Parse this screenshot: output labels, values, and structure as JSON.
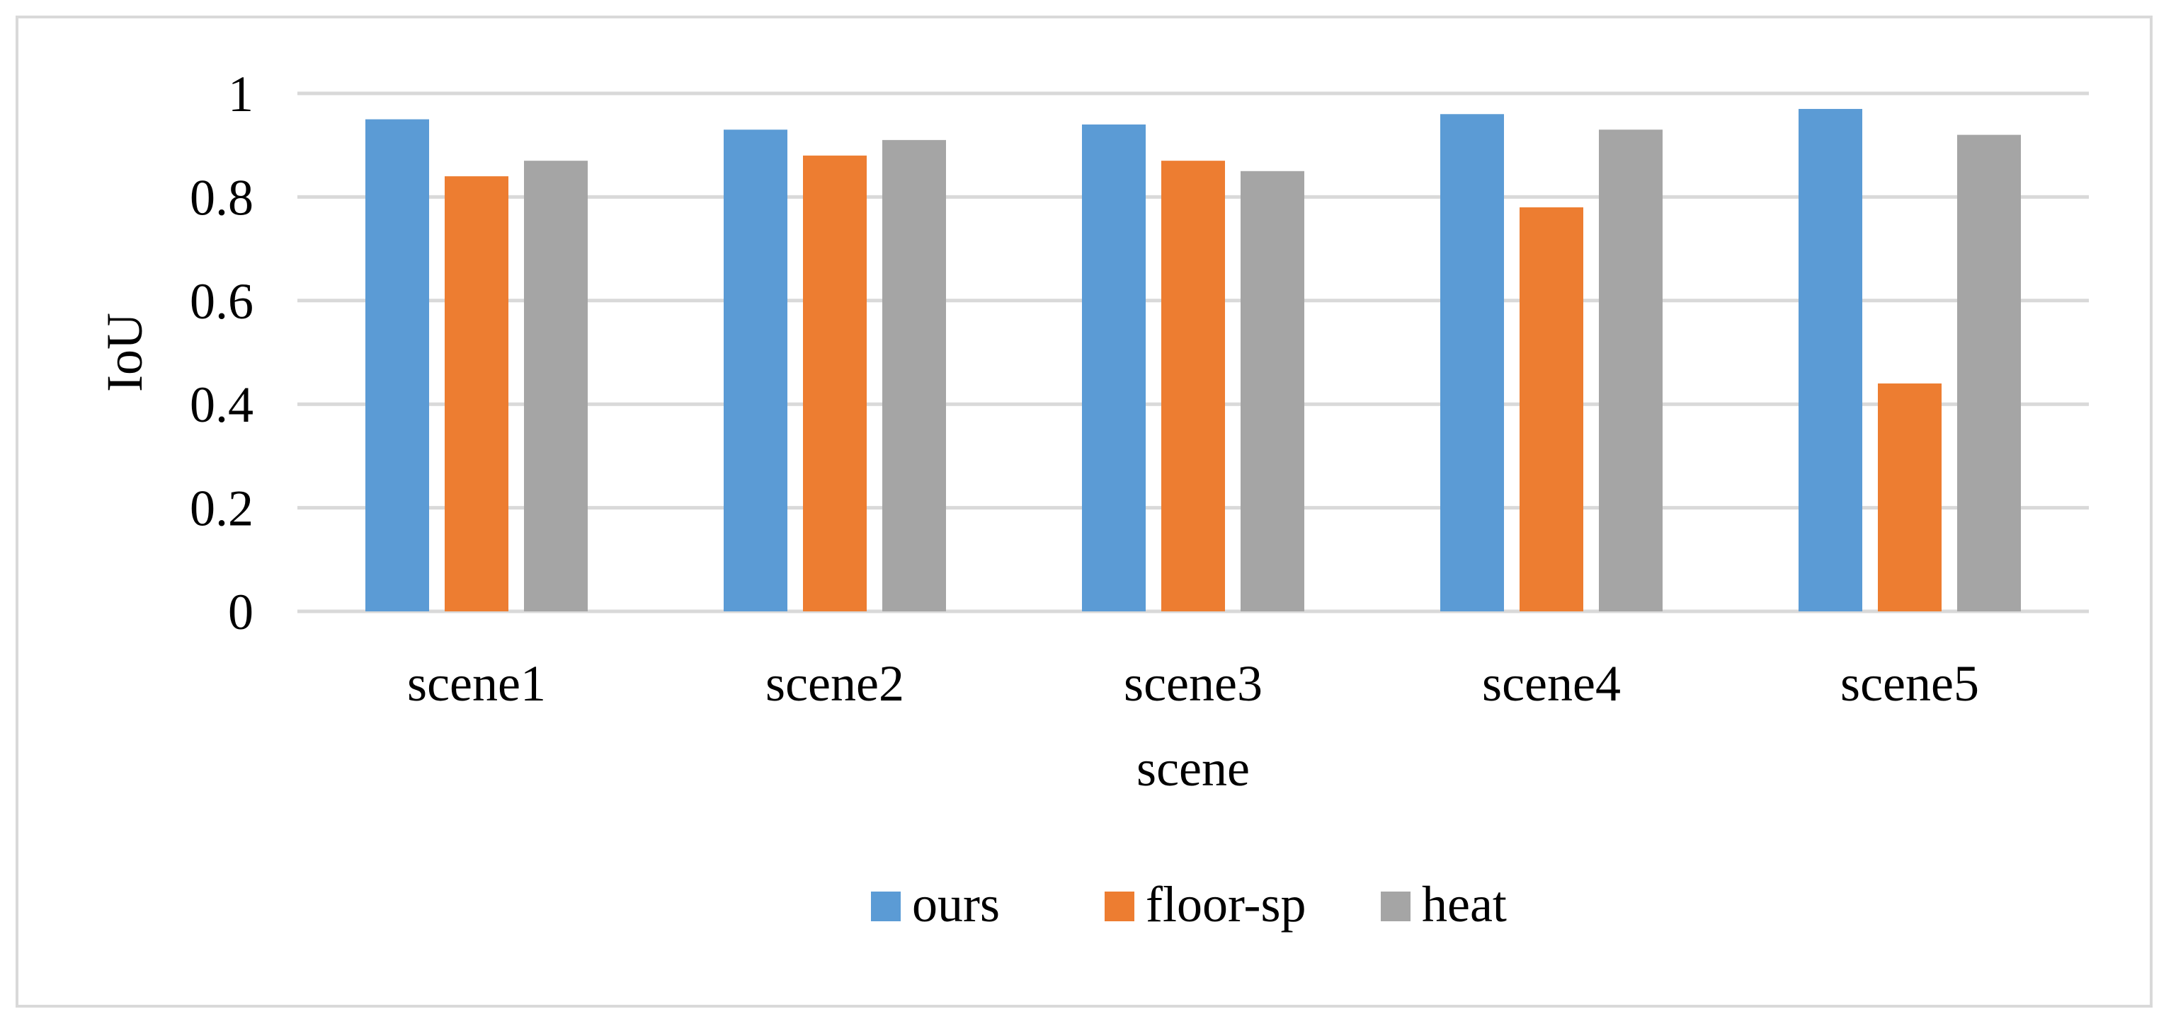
{
  "chart_data": {
    "type": "bar",
    "categories": [
      "scene1",
      "scene2",
      "scene3",
      "scene4",
      "scene5"
    ],
    "series": [
      {
        "name": "ours",
        "color": "#5b9bd5",
        "values": [
          0.95,
          0.93,
          0.94,
          0.96,
          0.97
        ]
      },
      {
        "name": "floor-sp",
        "color": "#ed7d31",
        "values": [
          0.84,
          0.88,
          0.87,
          0.78,
          0.44
        ]
      },
      {
        "name": "heat",
        "color": "#a5a5a5",
        "values": [
          0.87,
          0.91,
          0.85,
          0.93,
          0.92
        ]
      }
    ],
    "title": "",
    "xlabel": "scene",
    "ylabel": "IoU",
    "ylim": [
      0,
      1
    ],
    "yticks": [
      0,
      0.2,
      0.4,
      0.6,
      0.8,
      1
    ],
    "ytick_labels": [
      "0",
      "0.2",
      "0.4",
      "0.6",
      "0.8",
      "1"
    ],
    "grid": true,
    "legend_position": "bottom",
    "gridline_color": "#d9d9d9",
    "border_color": "#d9d9d9"
  }
}
